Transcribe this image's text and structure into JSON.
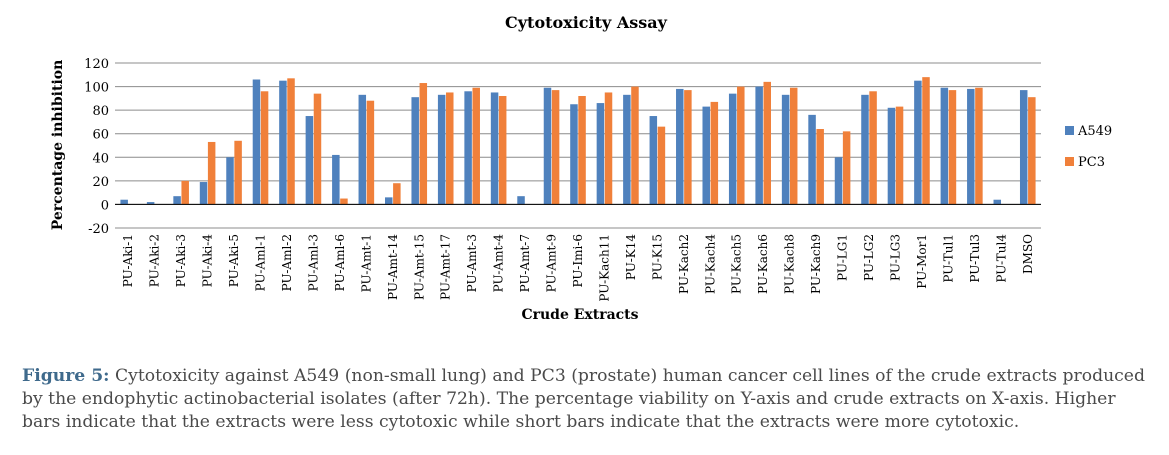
{
  "figure": {
    "caption_label": "Figure 5:",
    "caption_text": " Cytotoxicity against A549 (non-small lung) and PC3 (prostate) human cancer cell lines of the crude extracts produced by the endophytic actinobacterial isolates (after 72h). The percentage viability on Y-axis and crude extracts on X-axis. Higher bars indicate that the extracts were less cytotoxic while short bars indicate that the extracts were more cytotoxic."
  },
  "colors": {
    "A549": "#4f81bd",
    "PC3": "#f0803a",
    "grid": "#8c8c8c"
  },
  "chart_data": {
    "type": "bar",
    "title": "Cytotoxicity Assay",
    "xlabel": "Crude Extracts",
    "ylabel": "Percentage inhibition",
    "ylim": [
      -20,
      120
    ],
    "yticks": [
      -20,
      0,
      20,
      40,
      60,
      80,
      100,
      120
    ],
    "grid": true,
    "legend": "right",
    "categories": [
      "PU-Aki-1",
      "PU-Aki-2",
      "PU-Aki-3",
      "PU-Aki-4",
      "PU-Aki-5",
      "PU-Aml-1",
      "PU-Aml-2",
      "PU-Aml-3",
      "PU-Aml-6",
      "PU-Amt-1",
      "PU-Amt-14",
      "PU-Amt-15",
      "PU-Amt-17",
      "PU-Amt-3",
      "PU-Amt-4",
      "PU-Amt-7",
      "PU-Amt-9",
      "PU-Imi-6",
      "PU-Kach11",
      "PU-K14",
      "PU-K15",
      "PU-Kach2",
      "PU-Kach4",
      "PU-Kach5",
      "PU-Kach6",
      "PU-Kach8",
      "PU-Kach9",
      "PU-LG1",
      "PU-LG2",
      "PU-LG3",
      "PU-Mor1",
      "PU-Tul1",
      "PU-Tul3",
      "PU-Tul4",
      "DMSO"
    ],
    "series": [
      {
        "name": "A549",
        "values": [
          4,
          2,
          7,
          19,
          40,
          106,
          105,
          75,
          42,
          93,
          6,
          91,
          93,
          96,
          95,
          7,
          99,
          85,
          86,
          93,
          75,
          98,
          83,
          94,
          100,
          93,
          76,
          40,
          93,
          82,
          105,
          99,
          98,
          4,
          97
        ]
      },
      {
        "name": "PC3",
        "values": [
          0,
          0,
          20,
          53,
          54,
          96,
          107,
          94,
          5,
          88,
          18,
          103,
          95,
          99,
          92,
          0,
          97,
          92,
          95,
          100,
          66,
          97,
          87,
          100,
          104,
          99,
          64,
          62,
          96,
          83,
          108,
          97,
          99,
          0,
          91
        ]
      }
    ]
  }
}
